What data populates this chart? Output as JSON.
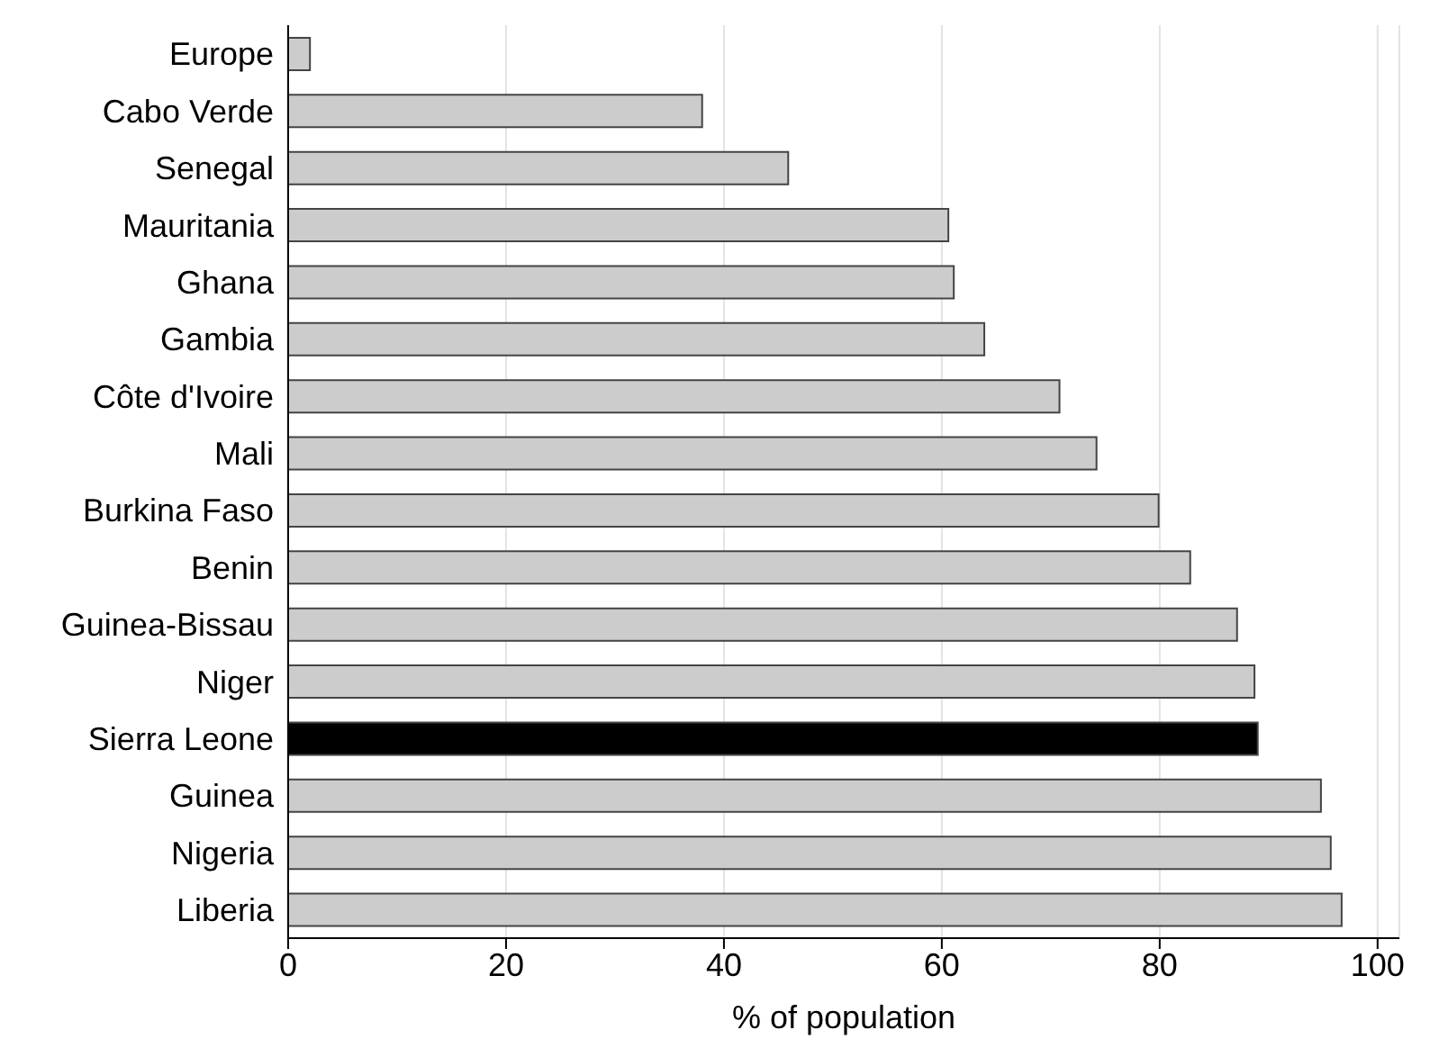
{
  "chart_data": {
    "type": "bar",
    "orientation": "horizontal",
    "xlabel": "% of population",
    "categories": [
      "Europe",
      "Cabo Verde",
      "Senegal",
      "Mauritania",
      "Ghana",
      "Gambia",
      "Côte d'Ivoire",
      "Mali",
      "Burkina Faso",
      "Benin",
      "Guinea-Bissau",
      "Niger",
      "Sierra Leone",
      "Guinea",
      "Nigeria",
      "Liberia"
    ],
    "values": [
      2.0,
      38.0,
      45.9,
      60.6,
      61.1,
      63.9,
      70.8,
      74.2,
      79.9,
      82.8,
      87.1,
      88.7,
      89.0,
      94.8,
      95.7,
      96.7
    ],
    "colors": [
      "#cccccc",
      "#cccccc",
      "#cccccc",
      "#cccccc",
      "#cccccc",
      "#cccccc",
      "#cccccc",
      "#cccccc",
      "#cccccc",
      "#cccccc",
      "#cccccc",
      "#cccccc",
      "#000000",
      "#cccccc",
      "#cccccc",
      "#cccccc"
    ],
    "xlim": [
      0,
      102
    ],
    "xticks": [
      0,
      20,
      40,
      60,
      80,
      100
    ],
    "grid": "x"
  }
}
